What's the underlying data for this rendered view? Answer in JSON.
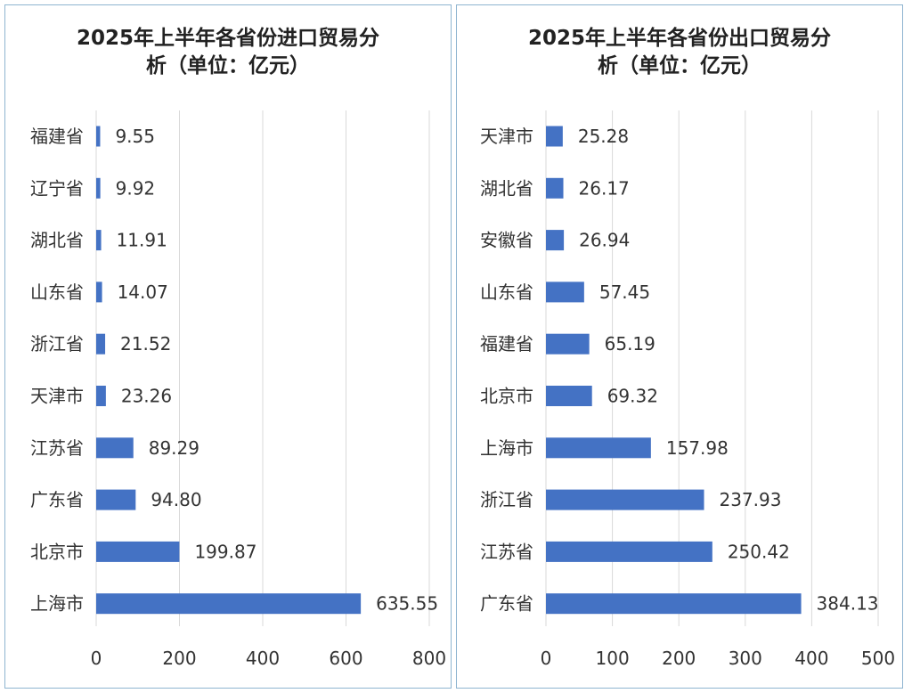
{
  "chart_data": [
    {
      "type": "bar",
      "orientation": "horizontal",
      "title": "2025年上半年各省份进口贸易分析（单位：亿元）",
      "title_lines": [
        "2025年上半年各省份进口贸易分",
        "析（单位：亿元）"
      ],
      "categories": [
        "福建省",
        "辽宁省",
        "湖北省",
        "山东省",
        "浙江省",
        "天津市",
        "江苏省",
        "广东省",
        "北京市",
        "上海市"
      ],
      "values": [
        9.55,
        9.92,
        11.91,
        14.07,
        21.52,
        23.26,
        89.29,
        94.8,
        199.87,
        635.55
      ],
      "value_labels": [
        "9.55",
        "9.92",
        "11.91",
        "14.07",
        "21.52",
        "23.26",
        "89.29",
        "94.80",
        "199.87",
        "635.55"
      ],
      "xlim": [
        0,
        800
      ],
      "xticks": [
        0,
        200,
        400,
        600,
        800
      ],
      "grid": true,
      "bar_color": "#4472c4"
    },
    {
      "type": "bar",
      "orientation": "horizontal",
      "title": "2025年上半年各省份出口贸易分析（单位：亿元）",
      "title_lines": [
        "2025年上半年各省份出口贸易分",
        "析（单位：亿元）"
      ],
      "categories": [
        "天津市",
        "湖北省",
        "安徽省",
        "山东省",
        "福建省",
        "北京市",
        "上海市",
        "浙江省",
        "江苏省",
        "广东省"
      ],
      "values": [
        25.28,
        26.17,
        26.94,
        57.45,
        65.19,
        69.32,
        157.98,
        237.93,
        250.42,
        384.13
      ],
      "value_labels": [
        "25.28",
        "26.17",
        "26.94",
        "57.45",
        "65.19",
        "69.32",
        "157.98",
        "237.93",
        "250.42",
        "384.13"
      ],
      "xlim": [
        0,
        500
      ],
      "xticks": [
        0,
        100,
        200,
        300,
        400,
        500
      ],
      "grid": true,
      "bar_color": "#4472c4"
    }
  ]
}
